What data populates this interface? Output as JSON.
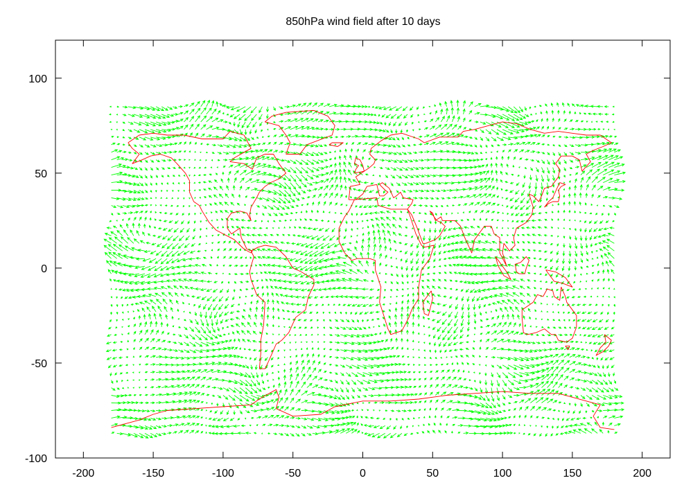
{
  "chart_data": {
    "type": "vector-field",
    "title": "850hPa wind field after 10 days",
    "xlabel": "",
    "ylabel": "",
    "xlim": [
      -220,
      220
    ],
    "ylim": [
      -100,
      120
    ],
    "x_ticks": [
      -200,
      -150,
      -100,
      -50,
      0,
      50,
      100,
      150,
      200
    ],
    "y_ticks": [
      -100,
      -50,
      0,
      50,
      100
    ],
    "grid": false,
    "legend": "none",
    "vector_grid": {
      "lon_range": [
        -180,
        180
      ],
      "lat_range": [
        -87,
        87
      ],
      "spacing_deg": 4
    },
    "colors": {
      "vectors": "#00ff00",
      "coastlines": "#ff0000",
      "axes": "#000000"
    },
    "coastlines": [
      [
        [
          -168,
          66
        ],
        [
          -160,
          70
        ],
        [
          -150,
          71
        ],
        [
          -140,
          70
        ],
        [
          -128,
          70
        ],
        [
          -115,
          68
        ],
        [
          -100,
          68
        ],
        [
          -95,
          72
        ],
        [
          -85,
          70
        ],
        [
          -80,
          63
        ],
        [
          -92,
          58
        ],
        [
          -95,
          56
        ],
        [
          -85,
          55
        ],
        [
          -79,
          52
        ],
        [
          -76,
          58
        ],
        [
          -70,
          60
        ],
        [
          -64,
          60
        ],
        [
          -60,
          55
        ],
        [
          -55,
          50
        ],
        [
          -60,
          47
        ],
        [
          -66,
          45
        ],
        [
          -70,
          43
        ],
        [
          -74,
          40
        ],
        [
          -76,
          37
        ],
        [
          -80,
          32
        ],
        [
          -81,
          28
        ],
        [
          -80,
          25
        ],
        [
          -83,
          29
        ],
        [
          -88,
          30
        ],
        [
          -94,
          29
        ],
        [
          -97,
          26
        ],
        [
          -97,
          21
        ],
        [
          -94,
          18
        ],
        [
          -88,
          21
        ],
        [
          -87,
          16
        ],
        [
          -83,
          10
        ],
        [
          -79,
          9
        ],
        [
          -80,
          8
        ],
        [
          -85,
          10
        ],
        [
          -92,
          15
        ],
        [
          -105,
          20
        ],
        [
          -110,
          24
        ],
        [
          -115,
          30
        ],
        [
          -117,
          33
        ],
        [
          -121,
          35
        ],
        [
          -124,
          40
        ],
        [
          -124,
          46
        ],
        [
          -127,
          50
        ],
        [
          -133,
          55
        ],
        [
          -137,
          58
        ],
        [
          -145,
          60
        ],
        [
          -152,
          59
        ],
        [
          -158,
          57
        ],
        [
          -165,
          55
        ],
        [
          -160,
          60
        ],
        [
          -165,
          63
        ],
        [
          -168,
          66
        ]
      ],
      [
        [
          -80,
          9
        ],
        [
          -75,
          11
        ],
        [
          -70,
          12
        ],
        [
          -62,
          11
        ],
        [
          -55,
          6
        ],
        [
          -50,
          0
        ],
        [
          -44,
          -2
        ],
        [
          -35,
          -6
        ],
        [
          -35,
          -9
        ],
        [
          -39,
          -15
        ],
        [
          -41,
          -22
        ],
        [
          -48,
          -26
        ],
        [
          -53,
          -34
        ],
        [
          -58,
          -38
        ],
        [
          -62,
          -40
        ],
        [
          -65,
          -45
        ],
        [
          -68,
          -50
        ],
        [
          -70,
          -53
        ],
        [
          -74,
          -53
        ],
        [
          -73,
          -45
        ],
        [
          -73,
          -38
        ],
        [
          -71,
          -30
        ],
        [
          -70,
          -18
        ],
        [
          -76,
          -14
        ],
        [
          -80,
          -6
        ],
        [
          -81,
          -2
        ],
        [
          -80,
          1
        ],
        [
          -78,
          6
        ],
        [
          -80,
          9
        ]
      ],
      [
        [
          -55,
          60
        ],
        [
          -45,
          60
        ],
        [
          -40,
          65
        ],
        [
          -22,
          70
        ],
        [
          -20,
          75
        ],
        [
          -25,
          80
        ],
        [
          -35,
          83
        ],
        [
          -55,
          82
        ],
        [
          -65,
          80
        ],
        [
          -70,
          77
        ],
        [
          -60,
          75
        ],
        [
          -55,
          70
        ],
        [
          -52,
          66
        ],
        [
          -55,
          60
        ]
      ],
      [
        [
          -10,
          36
        ],
        [
          -9,
          43
        ],
        [
          -2,
          44
        ],
        [
          -5,
          48
        ],
        [
          -1,
          50
        ],
        [
          5,
          53
        ],
        [
          8,
          55
        ],
        [
          9,
          57
        ],
        [
          5,
          60
        ],
        [
          6,
          63
        ],
        [
          13,
          67
        ],
        [
          20,
          70
        ],
        [
          28,
          71
        ],
        [
          40,
          68
        ],
        [
          44,
          66
        ],
        [
          55,
          69
        ],
        [
          68,
          69
        ],
        [
          72,
          72
        ],
        [
          80,
          73
        ],
        [
          90,
          75
        ],
        [
          100,
          77
        ],
        [
          110,
          76
        ],
        [
          120,
          73
        ],
        [
          130,
          71
        ],
        [
          140,
          72
        ],
        [
          150,
          71
        ],
        [
          160,
          70
        ],
        [
          170,
          70
        ],
        [
          178,
          66
        ],
        [
          172,
          64
        ],
        [
          165,
          62
        ],
        [
          160,
          60
        ],
        [
          163,
          56
        ],
        [
          157,
          51
        ],
        [
          155,
          57
        ],
        [
          150,
          59
        ],
        [
          142,
          59
        ],
        [
          138,
          55
        ],
        [
          141,
          52
        ],
        [
          140,
          48
        ],
        [
          135,
          43
        ],
        [
          130,
          42
        ],
        [
          128,
          38
        ],
        [
          126,
          35
        ],
        [
          122,
          38
        ],
        [
          119,
          39
        ],
        [
          122,
          32
        ],
        [
          121,
          28
        ],
        [
          117,
          24
        ],
        [
          110,
          21
        ],
        [
          108,
          16
        ],
        [
          109,
          12
        ],
        [
          105,
          9
        ],
        [
          101,
          13
        ],
        [
          100,
          8
        ],
        [
          103,
          1
        ],
        [
          98,
          8
        ],
        [
          98,
          16
        ],
        [
          94,
          18
        ],
        [
          92,
          22
        ],
        [
          87,
          22
        ],
        [
          80,
          15
        ],
        [
          78,
          8
        ],
        [
          73,
          16
        ],
        [
          70,
          22
        ],
        [
          66,
          25
        ],
        [
          57,
          25
        ],
        [
          56,
          27
        ],
        [
          52,
          25
        ],
        [
          50,
          29
        ],
        [
          48,
          30
        ],
        [
          53,
          25
        ],
        [
          56,
          24
        ],
        [
          59,
          22
        ],
        [
          55,
          17
        ],
        [
          52,
          15
        ],
        [
          45,
          13
        ],
        [
          43,
          13
        ],
        [
          39,
          21
        ],
        [
          35,
          28
        ],
        [
          32,
          31
        ],
        [
          35,
          34
        ],
        [
          36,
          36
        ],
        [
          29,
          37
        ],
        [
          27,
          40
        ],
        [
          24,
          38
        ],
        [
          22,
          37
        ],
        [
          19,
          42
        ],
        [
          14,
          45
        ],
        [
          12,
          44
        ],
        [
          16,
          41
        ],
        [
          18,
          40
        ],
        [
          15,
          38
        ],
        [
          12,
          38
        ],
        [
          10,
          44
        ],
        [
          3,
          43
        ],
        [
          0,
          39
        ],
        [
          -5,
          36
        ],
        [
          -10,
          36
        ]
      ],
      [
        [
          -6,
          36
        ],
        [
          10,
          37
        ],
        [
          11,
          33
        ],
        [
          20,
          31
        ],
        [
          30,
          31
        ],
        [
          32,
          31
        ],
        [
          34,
          27
        ],
        [
          38,
          18
        ],
        [
          42,
          12
        ],
        [
          44,
          11
        ],
        [
          51,
          12
        ],
        [
          48,
          5
        ],
        [
          42,
          -1
        ],
        [
          40,
          -10
        ],
        [
          40,
          -16
        ],
        [
          35,
          -22
        ],
        [
          33,
          -26
        ],
        [
          28,
          -33
        ],
        [
          20,
          -35
        ],
        [
          18,
          -32
        ],
        [
          12,
          -18
        ],
        [
          13,
          -10
        ],
        [
          9,
          -1
        ],
        [
          9,
          4
        ],
        [
          5,
          5
        ],
        [
          -4,
          5
        ],
        [
          -8,
          4
        ],
        [
          -13,
          8
        ],
        [
          -17,
          14
        ],
        [
          -17,
          21
        ],
        [
          -13,
          27
        ],
        [
          -10,
          30
        ],
        [
          -6,
          36
        ]
      ],
      [
        [
          49,
          -12
        ],
        [
          50,
          -16
        ],
        [
          47,
          -25
        ],
        [
          44,
          -24
        ],
        [
          43,
          -18
        ],
        [
          46,
          -15
        ],
        [
          49,
          -12
        ]
      ],
      [
        [
          114,
          -22
        ],
        [
          114,
          -26
        ],
        [
          115,
          -34
        ],
        [
          118,
          -35
        ],
        [
          124,
          -34
        ],
        [
          130,
          -32
        ],
        [
          135,
          -35
        ],
        [
          138,
          -35
        ],
        [
          140,
          -38
        ],
        [
          146,
          -39
        ],
        [
          150,
          -37
        ],
        [
          153,
          -31
        ],
        [
          153,
          -25
        ],
        [
          150,
          -22
        ],
        [
          146,
          -18
        ],
        [
          145,
          -15
        ],
        [
          142,
          -10
        ],
        [
          141,
          -17
        ],
        [
          137,
          -15
        ],
        [
          136,
          -12
        ],
        [
          132,
          -11
        ],
        [
          129,
          -15
        ],
        [
          125,
          -14
        ],
        [
          122,
          -18
        ],
        [
          118,
          -20
        ],
        [
          114,
          -22
        ]
      ],
      [
        [
          145,
          -41
        ],
        [
          148,
          -41
        ],
        [
          147,
          -43
        ],
        [
          145,
          -41
        ]
      ],
      [
        [
          173,
          -35
        ],
        [
          178,
          -38
        ],
        [
          176,
          -41
        ],
        [
          172,
          -44
        ],
        [
          167,
          -46
        ],
        [
          170,
          -42
        ],
        [
          174,
          -39
        ],
        [
          173,
          -35
        ]
      ],
      [
        [
          130,
          32
        ],
        [
          133,
          34
        ],
        [
          136,
          35
        ],
        [
          140,
          35
        ],
        [
          141,
          38
        ],
        [
          140,
          41
        ],
        [
          142,
          43
        ],
        [
          145,
          44
        ],
        [
          141,
          45
        ],
        [
          139,
          42
        ],
        [
          136,
          37
        ],
        [
          133,
          35
        ],
        [
          130,
          32
        ]
      ],
      [
        [
          -6,
          50
        ],
        [
          1,
          51
        ],
        [
          0,
          54
        ],
        [
          -2,
          57
        ],
        [
          -5,
          58
        ],
        [
          -6,
          55
        ],
        [
          -3,
          54
        ],
        [
          -5,
          52
        ],
        [
          -6,
          50
        ]
      ],
      [
        [
          -18,
          64
        ],
        [
          -14,
          66
        ],
        [
          -22,
          66
        ],
        [
          -24,
          65
        ],
        [
          -18,
          64
        ]
      ],
      [
        [
          95,
          6
        ],
        [
          98,
          3
        ],
        [
          103,
          -2
        ],
        [
          106,
          -6
        ],
        [
          101,
          -4
        ],
        [
          97,
          1
        ],
        [
          95,
          6
        ]
      ],
      [
        [
          109,
          2
        ],
        [
          113,
          3
        ],
        [
          117,
          6
        ],
        [
          119,
          4
        ],
        [
          117,
          0
        ],
        [
          116,
          -3
        ],
        [
          112,
          -3
        ],
        [
          110,
          -2
        ],
        [
          109,
          2
        ]
      ],
      [
        [
          131,
          -1
        ],
        [
          138,
          -2
        ],
        [
          145,
          -5
        ],
        [
          150,
          -10
        ],
        [
          143,
          -8
        ],
        [
          137,
          -7
        ],
        [
          131,
          -1
        ]
      ],
      [
        [
          -180,
          -84
        ],
        [
          -160,
          -80
        ],
        [
          -150,
          -77
        ],
        [
          -140,
          -75
        ],
        [
          -120,
          -74
        ],
        [
          -100,
          -73
        ],
        [
          -80,
          -72
        ],
        [
          -72,
          -68
        ],
        [
          -62,
          -64
        ],
        [
          -60,
          -68
        ],
        [
          -62,
          -74
        ],
        [
          -50,
          -78
        ],
        [
          -30,
          -77
        ],
        [
          -20,
          -73
        ],
        [
          0,
          -70
        ],
        [
          20,
          -70
        ],
        [
          40,
          -69
        ],
        [
          60,
          -67
        ],
        [
          80,
          -66
        ],
        [
          100,
          -65
        ],
        [
          120,
          -66
        ],
        [
          140,
          -66
        ],
        [
          160,
          -70
        ],
        [
          170,
          -72
        ],
        [
          165,
          -78
        ],
        [
          170,
          -84
        ],
        [
          180,
          -85
        ]
      ]
    ]
  }
}
